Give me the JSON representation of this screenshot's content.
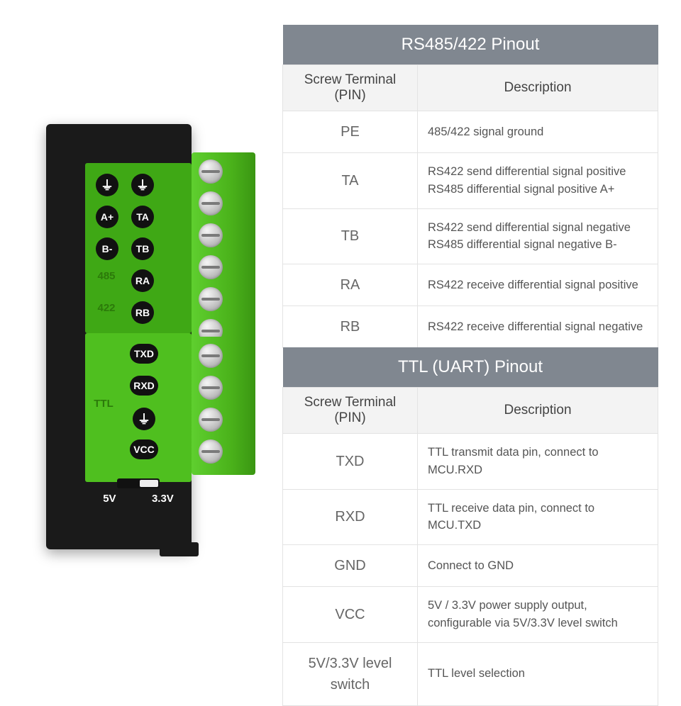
{
  "device": {
    "pin_labels_col1": [
      "⏚",
      "A+",
      "B-",
      "485",
      "422"
    ],
    "pin_labels_col2": [
      "⏚",
      "TA",
      "TB",
      "RA",
      "RB"
    ],
    "ttl_labels": [
      "TXD",
      "RXD",
      "⏚",
      "VCC"
    ],
    "ttl_side_label": "TTL",
    "voltage_labels": [
      "5V",
      "3.3V"
    ]
  },
  "rs_table": {
    "title": "RS485/422 Pinout",
    "col_pin": "Screw Terminal (PIN)",
    "col_desc": "Description",
    "rows": [
      {
        "pin": "PE",
        "desc": "485/422 signal ground"
      },
      {
        "pin": "TA",
        "desc": "RS422 send differential signal positive\nRS485 differential signal positive A+"
      },
      {
        "pin": "TB",
        "desc": "RS422 send differential signal negative\nRS485 differential signal negative B-"
      },
      {
        "pin": "RA",
        "desc": "RS422 receive differential signal positive"
      },
      {
        "pin": "RB",
        "desc": "RS422 receive differential signal negative"
      }
    ]
  },
  "ttl_table": {
    "title": "TTL (UART) Pinout",
    "col_pin": "Screw Terminal (PIN)",
    "col_desc": "Description",
    "rows": [
      {
        "pin": "TXD",
        "desc": "TTL transmit data pin, connect to MCU.RXD"
      },
      {
        "pin": "RXD",
        "desc": "TTL receive data pin, connect to MCU.TXD"
      },
      {
        "pin": "GND",
        "desc": "Connect to GND"
      },
      {
        "pin": "VCC",
        "desc": "5V / 3.3V power supply output, configurable via 5V/3.3V level switch"
      },
      {
        "pin": "5V/3.3V level switch",
        "desc": "TTL level selection"
      }
    ]
  },
  "style": {
    "table_header_bg": "#808790",
    "table_border": "#e3e3e3",
    "device_green": "#4fbf1f",
    "device_body": "#1a1a1a"
  }
}
